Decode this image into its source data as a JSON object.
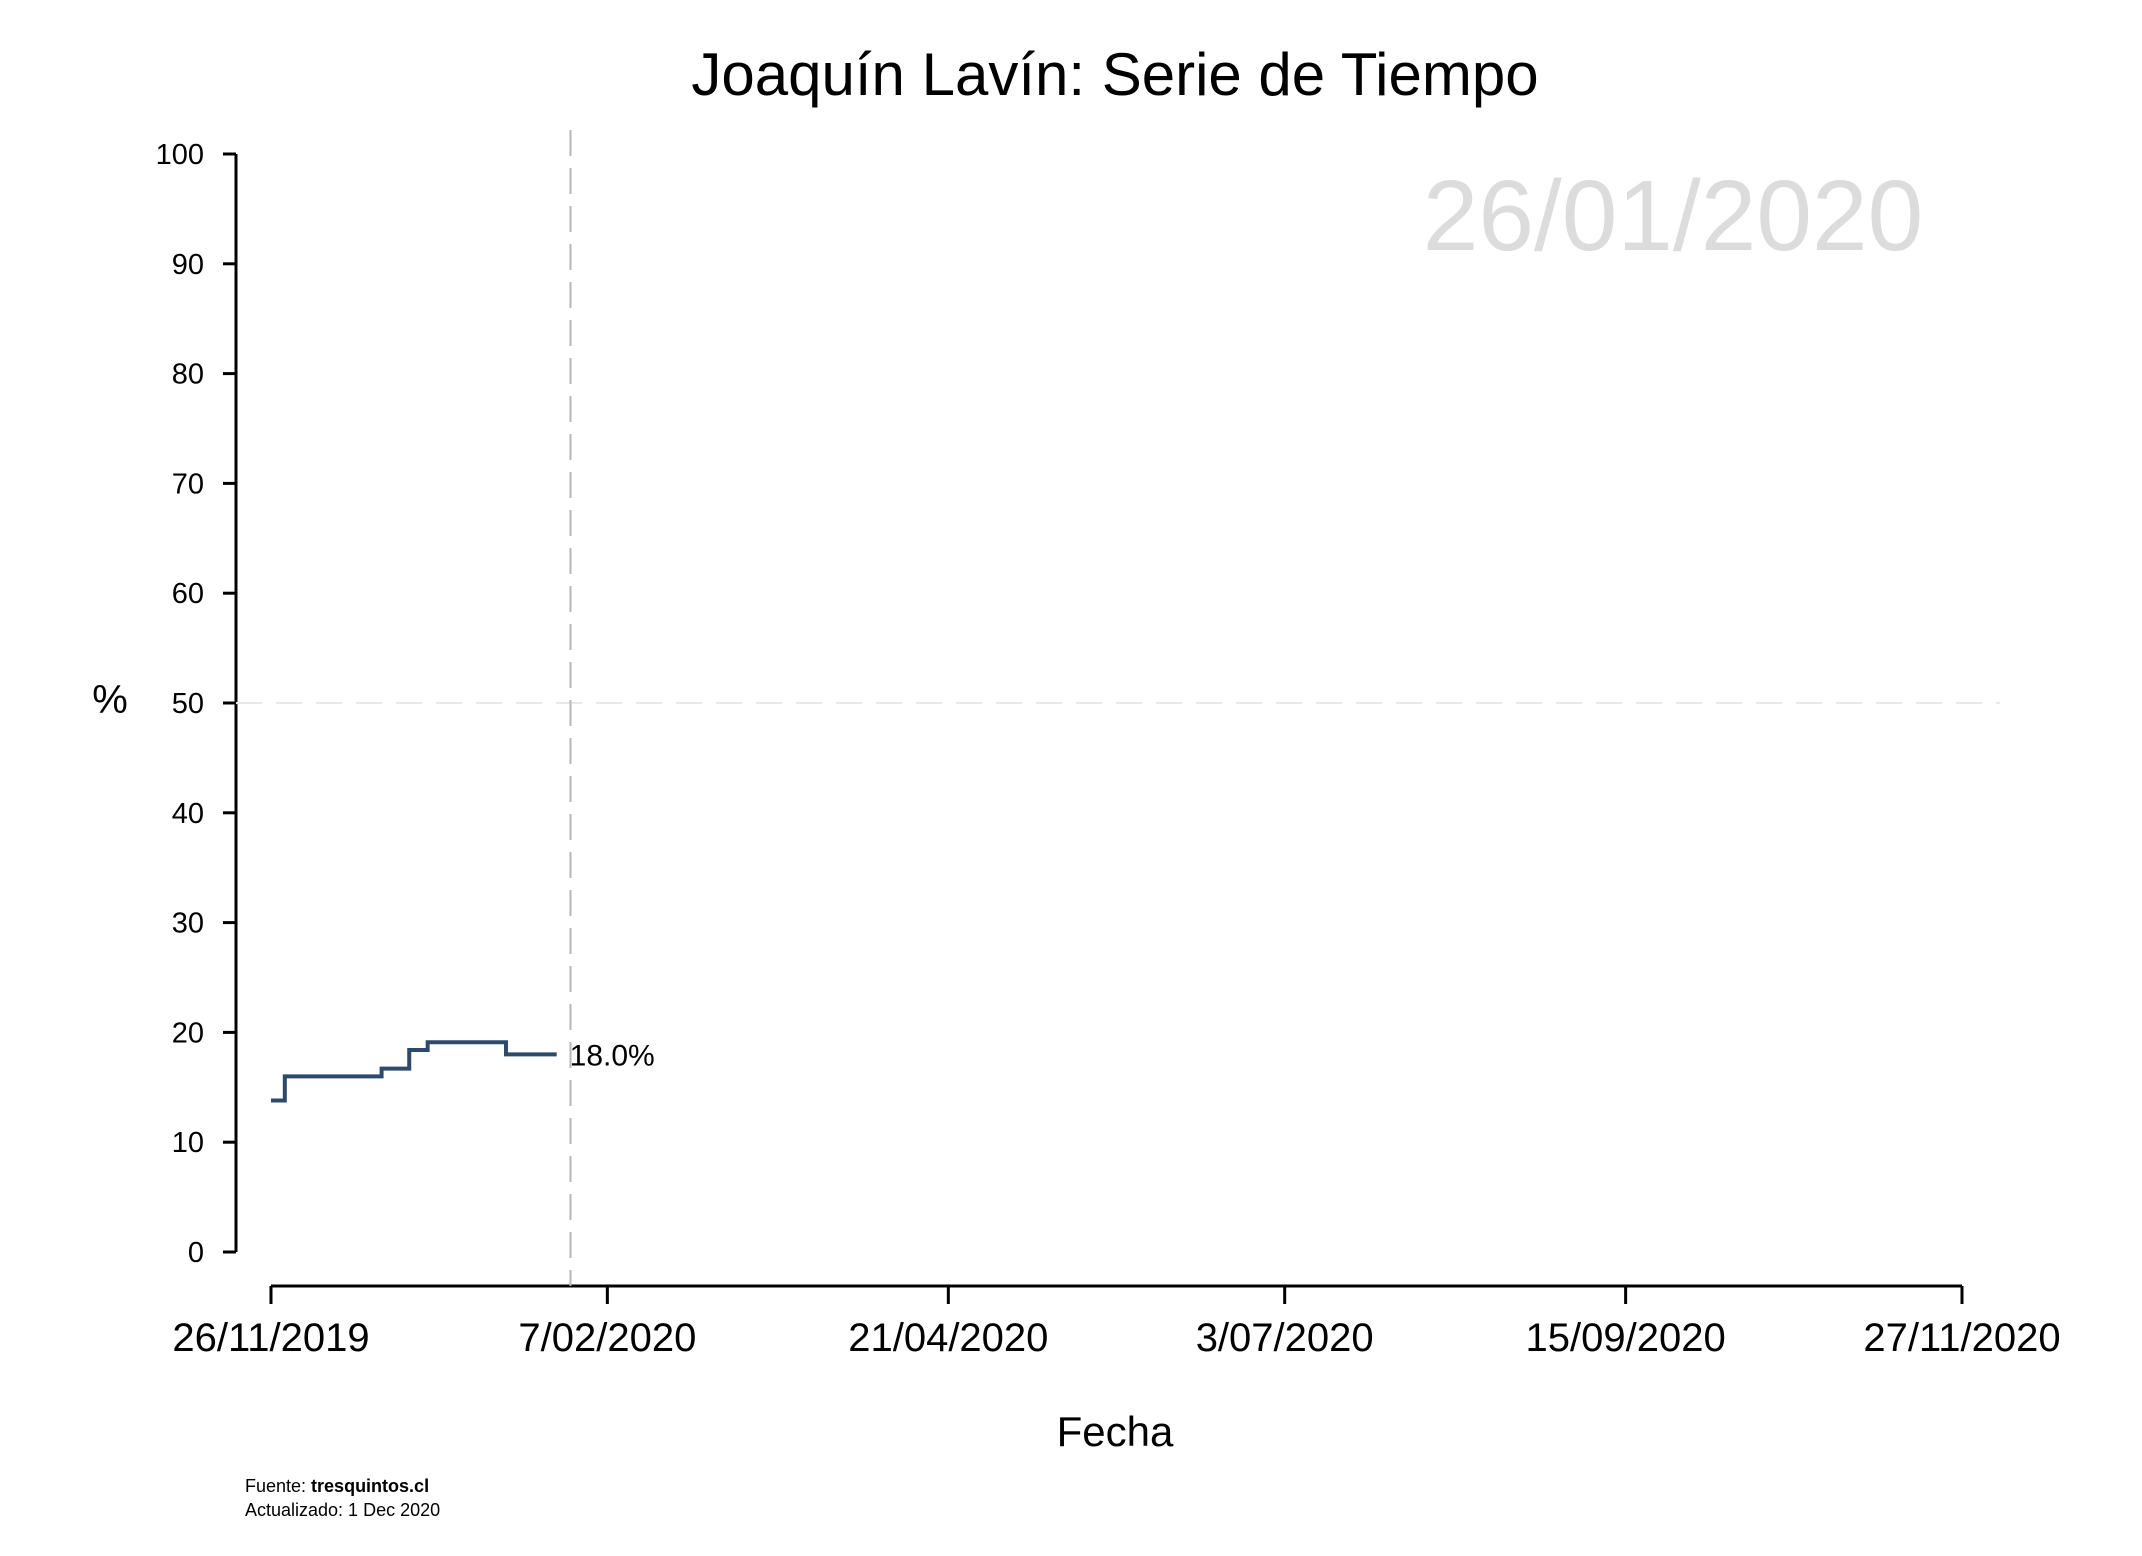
{
  "chart_data": {
    "type": "line",
    "title": "Joaquín Lavín: Serie de Tiempo",
    "date_watermark": "26/01/2020",
    "xlabel": "Fecha",
    "ylabel": "%",
    "ylim": [
      0,
      100
    ],
    "y_ticks": [
      0,
      10,
      20,
      30,
      40,
      50,
      60,
      70,
      80,
      90,
      100
    ],
    "x_ticks": [
      "26/11/2019",
      "7/02/2020",
      "21/04/2020",
      "3/07/2020",
      "15/09/2020",
      "27/11/2020"
    ],
    "reference_line_y": 50,
    "current_date_marker": "2020-01-30",
    "series": [
      {
        "step": true,
        "color": "#2e4a6b",
        "points": [
          {
            "x": "2019-11-26",
            "y": 13.8
          },
          {
            "x": "2019-11-29",
            "y": 16.0
          },
          {
            "x": "2019-12-20",
            "y": 16.7
          },
          {
            "x": "2019-12-26",
            "y": 18.4
          },
          {
            "x": "2019-12-30",
            "y": 19.1
          },
          {
            "x": "2020-01-16",
            "y": 18.0
          },
          {
            "x": "2020-01-27",
            "y": 18.0
          }
        ],
        "end_label": "18.0%"
      }
    ]
  },
  "footer": {
    "source_prefix": "Fuente: ",
    "source_name": "tresquintos.cl",
    "updated": "Actualizado: 1 Dec 2020"
  }
}
